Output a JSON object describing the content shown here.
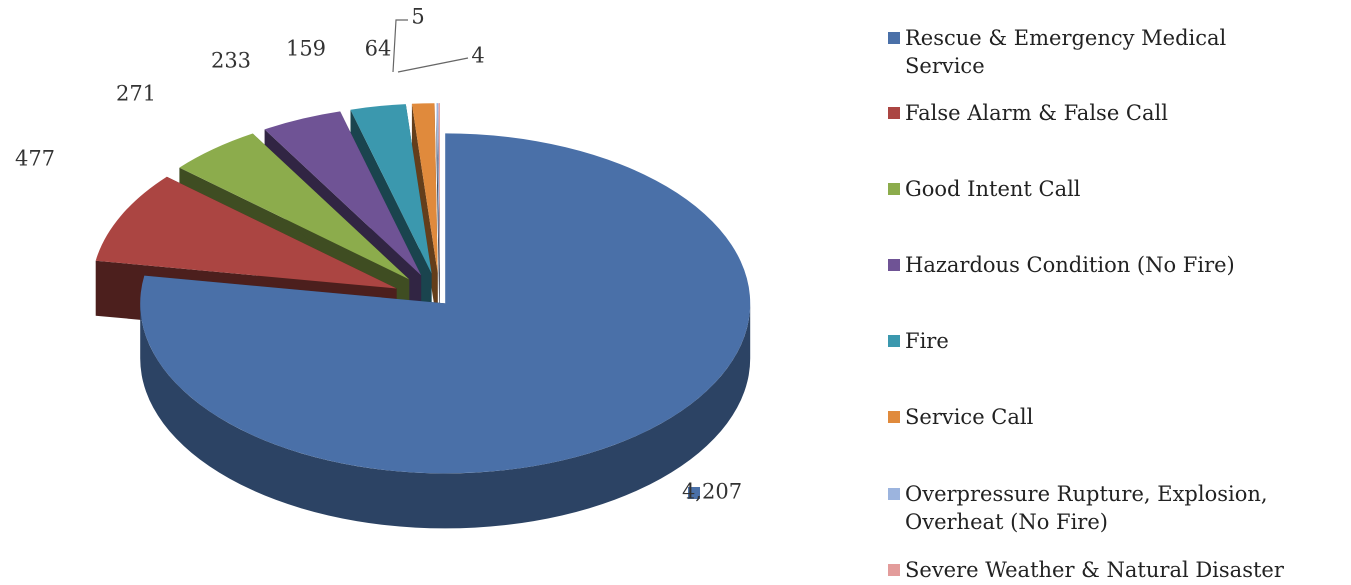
{
  "chart_data": {
    "type": "pie",
    "categories": [
      "Rescue & Emergency Medical Service",
      "False Alarm & False Call",
      "Good Intent Call",
      "Hazardous Condition (No Fire)",
      "Fire",
      "Service Call",
      "Overpressure Rupture, Explosion, Overheat (No Fire)",
      "Severe Weather & Natural Disaster"
    ],
    "values": [
      4207,
      477,
      271,
      233,
      159,
      64,
      5,
      4
    ],
    "value_labels": [
      "4,207",
      "477",
      "271",
      "233",
      "159",
      "64",
      "5",
      "4"
    ],
    "colors": [
      "#4a70a8",
      "#ab4542",
      "#8cac4c",
      "#6f5395",
      "#3b98ae",
      "#e08a3c",
      "#9cb4de",
      "#e39c9b"
    ],
    "legend": "right"
  }
}
